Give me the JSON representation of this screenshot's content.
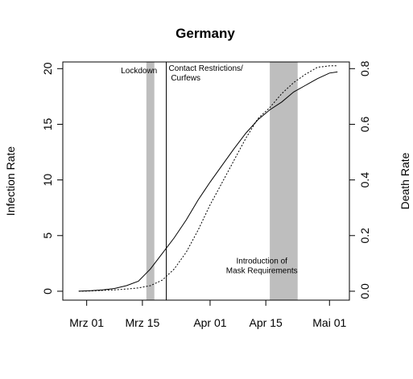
{
  "chart_data": {
    "type": "line",
    "title": "Germany",
    "xlabel": "",
    "ylabel": "Infection Rate",
    "y2label": "Death Rate",
    "x_ticks": [
      {
        "date": "2020-03-01",
        "label": "Mrz 01"
      },
      {
        "date": "2020-03-15",
        "label": "Mrz 15"
      },
      {
        "date": "2020-04-01",
        "label": "Apr 01"
      },
      {
        "date": "2020-04-15",
        "label": "Apr 15"
      },
      {
        "date": "2020-05-01",
        "label": "Mai 01"
      }
    ],
    "y_ticks": [
      "0",
      "5",
      "10",
      "15",
      "20"
    ],
    "y2_ticks": [
      "0.0",
      "0.2",
      "0.4",
      "0.6",
      "0.8"
    ],
    "xlim": [
      "2020-02-24",
      "2020-05-06"
    ],
    "ylim": [
      -0.8,
      20.6
    ],
    "y2lim": [
      -0.032,
      0.824
    ],
    "grid": false,
    "series": [
      {
        "axis": "left",
        "style": "solid",
        "x": [
          "2020-02-28",
          "2020-03-02",
          "2020-03-05",
          "2020-03-08",
          "2020-03-11",
          "2020-03-14",
          "2020-03-17",
          "2020-03-20",
          "2020-03-23",
          "2020-03-26",
          "2020-03-29",
          "2020-04-01",
          "2020-04-04",
          "2020-04-07",
          "2020-04-10",
          "2020-04-13",
          "2020-04-16",
          "2020-04-19",
          "2020-04-22",
          "2020-04-25",
          "2020-04-28",
          "2020-05-01",
          "2020-05-03"
        ],
        "y": [
          0.0,
          0.05,
          0.12,
          0.25,
          0.5,
          0.9,
          2.0,
          3.4,
          4.8,
          6.4,
          8.2,
          9.8,
          11.3,
          12.8,
          14.2,
          15.4,
          16.3,
          17.0,
          17.9,
          18.5,
          19.1,
          19.6,
          19.7
        ]
      },
      {
        "axis": "right",
        "style": "dotted",
        "x": [
          "2020-02-28",
          "2020-03-02",
          "2020-03-05",
          "2020-03-08",
          "2020-03-11",
          "2020-03-14",
          "2020-03-17",
          "2020-03-20",
          "2020-03-23",
          "2020-03-26",
          "2020-03-29",
          "2020-04-01",
          "2020-04-04",
          "2020-04-07",
          "2020-04-10",
          "2020-04-13",
          "2020-04-16",
          "2020-04-19",
          "2020-04-22",
          "2020-04-25",
          "2020-04-28",
          "2020-05-01",
          "2020-05-03"
        ],
        "y": [
          0.0,
          0.001,
          0.003,
          0.005,
          0.008,
          0.012,
          0.02,
          0.04,
          0.08,
          0.14,
          0.22,
          0.31,
          0.39,
          0.47,
          0.55,
          0.62,
          0.66,
          0.71,
          0.75,
          0.78,
          0.805,
          0.81,
          0.81
        ]
      }
    ],
    "shaded_regions": [
      {
        "start": "2020-03-16",
        "end": "2020-03-18"
      },
      {
        "start": "2020-04-16",
        "end": "2020-04-23"
      }
    ],
    "vertical_lines": [
      "2020-03-21"
    ],
    "annotations": [
      {
        "date": "2020-03-09",
        "value": 19.6,
        "anchor": "start",
        "lines": [
          "Lockdown"
        ]
      },
      {
        "date": "2020-03-21",
        "value": 19.8,
        "anchor": "start",
        "lines": [
          "Contact Restrictions/",
          " Curfews"
        ]
      },
      {
        "date": "2020-04-14",
        "value": 2.5,
        "anchor": "middle",
        "lines": [
          "Introduction of",
          "Mask Requirements"
        ]
      }
    ]
  }
}
